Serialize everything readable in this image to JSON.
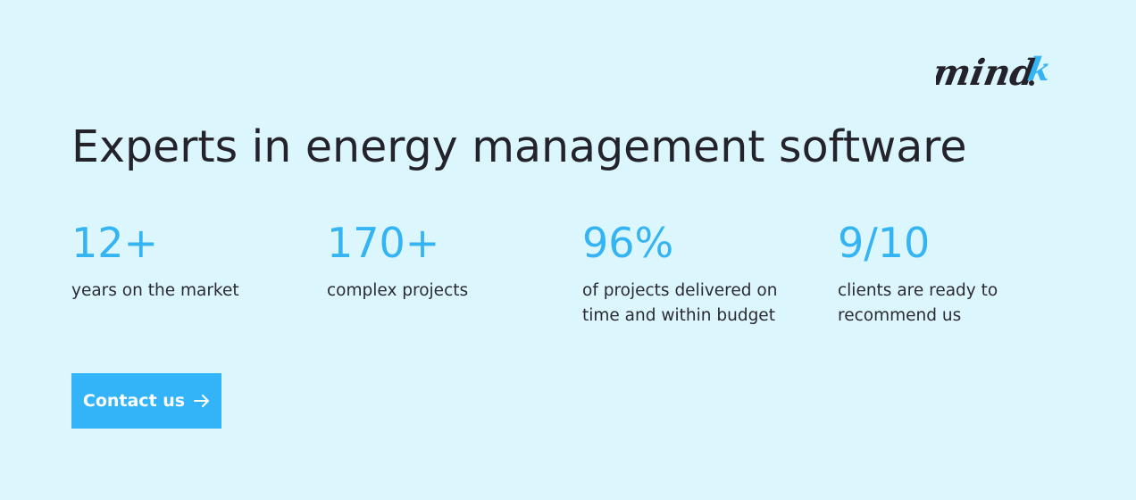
{
  "brand": {
    "logo_text_main": "mind",
    "logo_text_accent": "k",
    "accent_color": "#35b4f4"
  },
  "headline": "Experts in energy management software",
  "stats": [
    {
      "value": "12+",
      "label": "years on the market"
    },
    {
      "value": "170+",
      "label": "complex projects"
    },
    {
      "value": "96%",
      "label": "of projects delivered on time and within budget"
    },
    {
      "value": "9/10",
      "label": "clients are ready to recommend us"
    }
  ],
  "cta": {
    "label": "Contact us",
    "icon": "arrow-right-icon"
  },
  "colors": {
    "background": "#dcf6fd",
    "button": "#33b3f8",
    "text": "#24232b"
  }
}
